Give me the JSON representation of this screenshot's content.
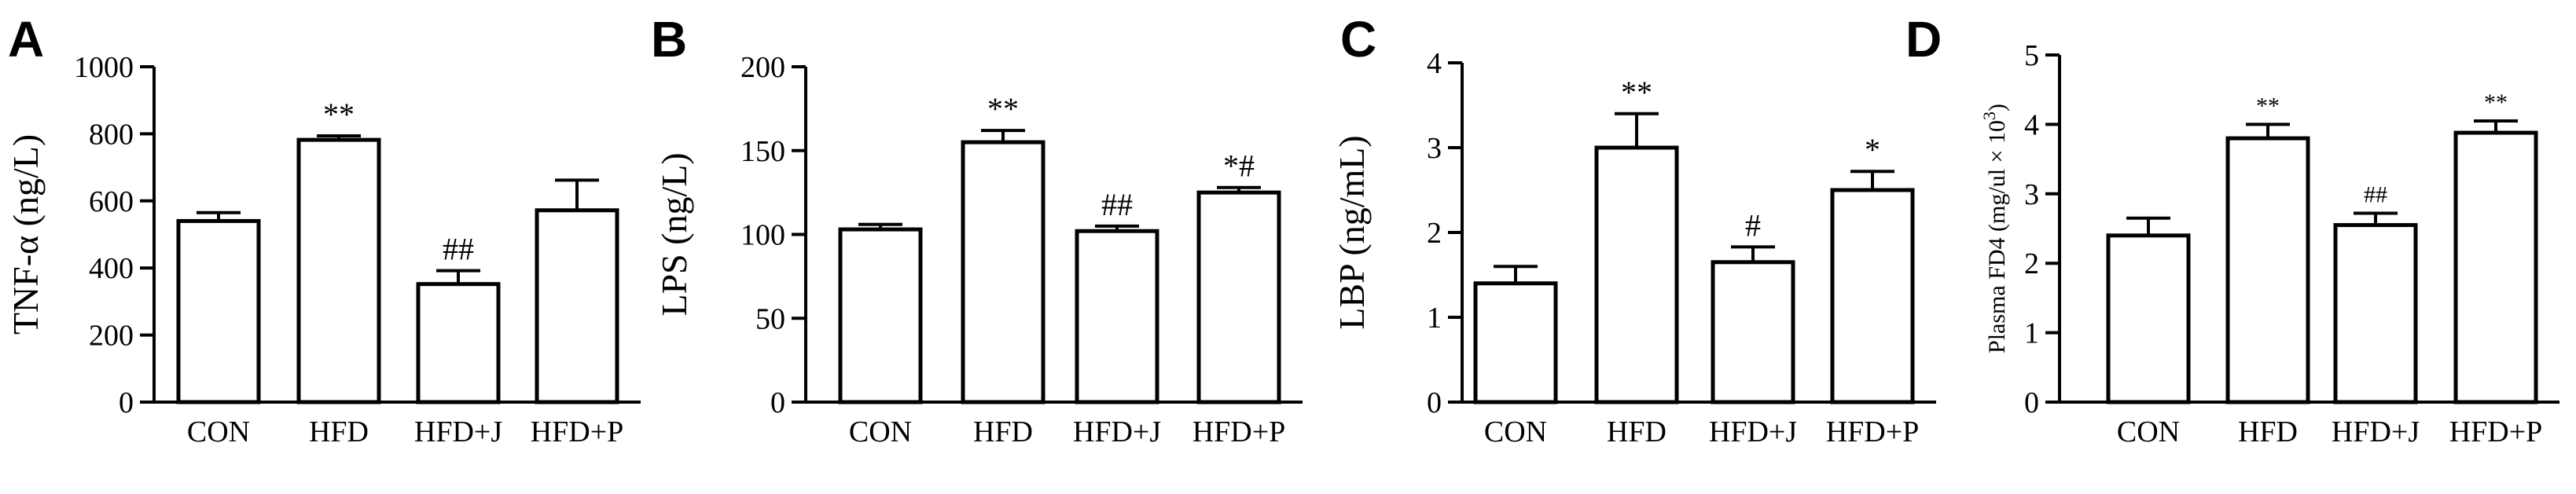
{
  "chart_data": [
    {
      "panel": "A",
      "type": "bar",
      "ylabel": "TNF-α (ng/L)",
      "ylim": [
        0,
        1000
      ],
      "yticks": [
        "0",
        "200",
        "400",
        "600",
        "800",
        "1000"
      ],
      "categories": [
        "CON",
        "HFD",
        "HFD+J",
        "HFD+P"
      ],
      "values": [
        540,
        782,
        352,
        572
      ],
      "errors": [
        25,
        12,
        40,
        90
      ],
      "annotations": [
        "",
        "**",
        "##",
        ""
      ]
    },
    {
      "panel": "B",
      "type": "bar",
      "ylabel": "LPS (ng/L)",
      "ylim": [
        0,
        200
      ],
      "yticks": [
        "0",
        "50",
        "100",
        "150",
        "200"
      ],
      "categories": [
        "CON",
        "HFD",
        "HFD+J",
        "HFD+P"
      ],
      "values": [
        103,
        155,
        102,
        125
      ],
      "errors": [
        3,
        7,
        3,
        3
      ],
      "annotations": [
        "",
        "**",
        "##",
        "*#"
      ]
    },
    {
      "panel": "C",
      "type": "bar",
      "ylabel": "LBP (ng/mL)",
      "ylim": [
        0,
        4
      ],
      "yticks": [
        "0",
        "1",
        "2",
        "3",
        "4"
      ],
      "categories": [
        "CON",
        "HFD",
        "HFD+J",
        "HFD+P"
      ],
      "values": [
        1.4,
        3.0,
        1.65,
        2.5
      ],
      "errors": [
        0.2,
        0.4,
        0.18,
        0.22
      ],
      "annotations": [
        "",
        "**",
        "#",
        "*"
      ]
    },
    {
      "panel": "D",
      "type": "bar",
      "ylabel": "Plasma FD4 (mg/ul × 10",
      "ylabel_sup": "3",
      "ylabel_close": ")",
      "ylim": [
        0,
        5
      ],
      "yticks": [
        "0",
        "1",
        "2",
        "3",
        "4",
        "5"
      ],
      "categories": [
        "CON",
        "HFD",
        "HFD+J",
        "HFD+P"
      ],
      "values": [
        2.4,
        3.8,
        2.55,
        3.88
      ],
      "errors": [
        0.25,
        0.2,
        0.17,
        0.17
      ],
      "annotations": [
        "",
        "**",
        "##",
        "**"
      ]
    }
  ]
}
